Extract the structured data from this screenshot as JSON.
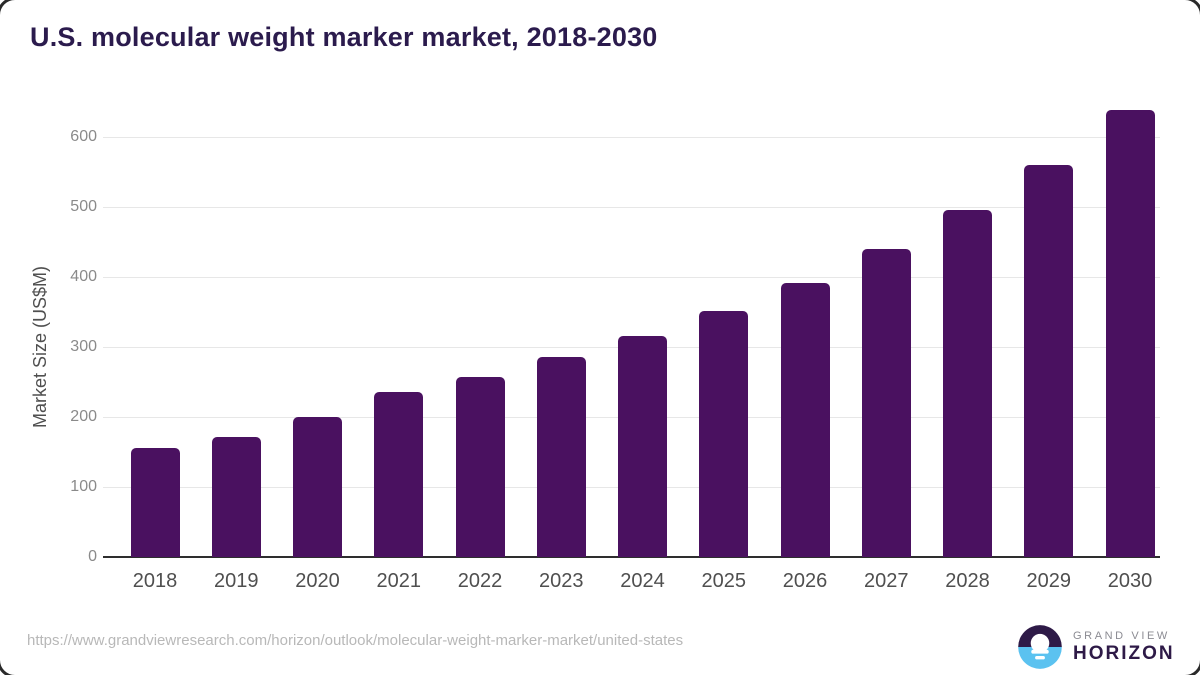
{
  "card": {
    "title": "U.S. molecular weight marker market, 2018-2030",
    "source_url": "https://www.grandviewresearch.com/horizon/outlook/molecular-weight-marker-market/united-states"
  },
  "logo": {
    "line1": "GRAND VIEW",
    "line2": "HORIZON"
  },
  "colors": {
    "bar": "#4a1160",
    "title": "#2b1b4d",
    "axis_line": "#2e2e2e",
    "gridline": "#e7e7e7",
    "y_tick_text": "#8a8a8a",
    "x_tick_text": "#4f4f4f",
    "url_text": "#b8b8b8",
    "logo_dark": "#2e1a47",
    "logo_blue": "#5bc2f0",
    "logo_gray": "#8b8b92"
  },
  "chart_data": {
    "type": "bar",
    "title": "U.S. molecular weight marker market, 2018-2030",
    "categories": [
      "2018",
      "2019",
      "2020",
      "2021",
      "2022",
      "2023",
      "2024",
      "2025",
      "2026",
      "2027",
      "2028",
      "2029",
      "2030"
    ],
    "values": [
      155,
      172,
      200,
      236,
      257,
      286,
      315,
      352,
      392,
      440,
      495,
      560,
      638
    ],
    "xlabel": "",
    "ylabel": "Market Size (US$M)",
    "ylim": [
      0,
      650
    ],
    "yticks": [
      0,
      100,
      200,
      300,
      400,
      500,
      600
    ],
    "grid": true,
    "legend": false,
    "bar_color": "#4a1160"
  }
}
